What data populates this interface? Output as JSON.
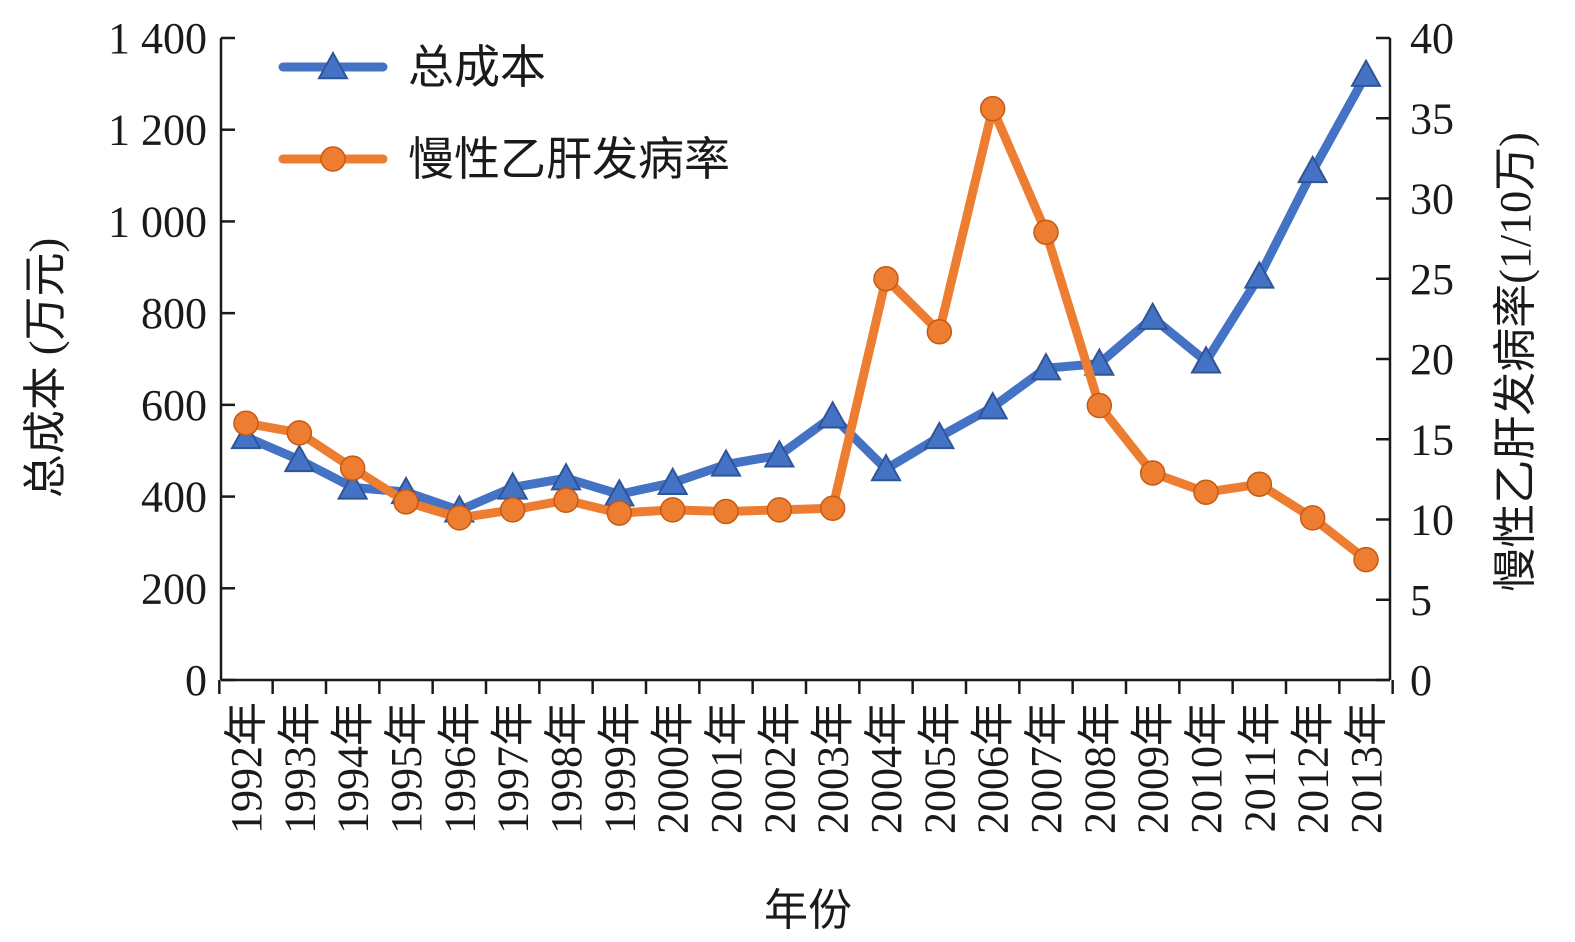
{
  "chart_data": {
    "type": "line",
    "xlabel": "年份",
    "ylabel_left": "总成本 (万元)",
    "ylabel_right": "慢性乙肝发病率(1/10万)",
    "left_ticks": [
      "0",
      "200",
      "400",
      "600",
      "800",
      "1 000",
      "1 200",
      "1 400"
    ],
    "right_ticks": [
      "0",
      "5",
      "10",
      "15",
      "20",
      "25",
      "30",
      "35",
      "40"
    ],
    "ylim_left": [
      0,
      1400
    ],
    "ylim_right": [
      0,
      40
    ],
    "legend_position": "top-left",
    "categories": [
      "1992年",
      "1993年",
      "1994年",
      "1995年",
      "1996年",
      "1997年",
      "1998年",
      "1999年",
      "2000年",
      "2001年",
      "2002年",
      "2003年",
      "2004年",
      "2005年",
      "2006年",
      "2007年",
      "2008年",
      "2009年",
      "2010年",
      "2011年",
      "2012年",
      "2013年"
    ],
    "series": [
      {
        "name": "总成本",
        "axis": "left",
        "color": "#4472C4",
        "marker": "triangle",
        "values": [
          530,
          480,
          420,
          410,
          370,
          420,
          440,
          405,
          430,
          470,
          490,
          575,
          460,
          530,
          595,
          680,
          690,
          790,
          695,
          880,
          1110,
          1320
        ]
      },
      {
        "name": "慢性乙肝发病率",
        "axis": "right",
        "color": "#ED7D31",
        "marker": "circle",
        "values": [
          16.0,
          15.4,
          13.2,
          11.1,
          10.1,
          10.6,
          11.2,
          10.4,
          10.6,
          10.5,
          10.6,
          10.7,
          25.0,
          21.7,
          35.6,
          27.9,
          17.1,
          12.9,
          11.7,
          12.2,
          10.1,
          7.5
        ]
      }
    ]
  }
}
